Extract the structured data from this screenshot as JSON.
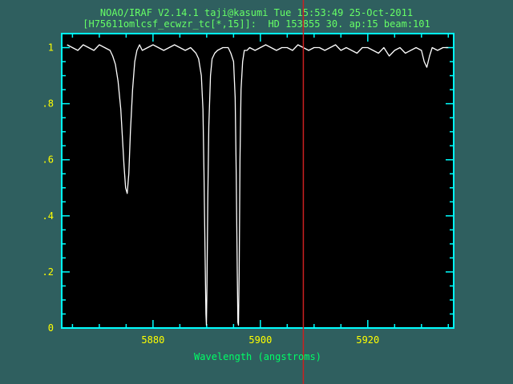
{
  "window": {
    "title_line1": "NOAO/IRAF V2.14.1 taji@kasumi Tue 15:53:49 25-Oct-2011",
    "title_line2": "[H75611omlcsf_ecwzr_tc[*,15]]:  HD 153855 30. ap:15 beam:101"
  },
  "colors": {
    "background": "#2f5f5f",
    "plot_background": "#000000",
    "axes": "#00ffff",
    "tick_labels": "#ffff00",
    "axis_label": "#00ff66",
    "header_text": "#66ff66",
    "spectrum": "#ffffff",
    "cursor": "#cc2020"
  },
  "chart_data": {
    "type": "line",
    "title": "",
    "xlabel": "Wavelength (angstroms)",
    "ylabel": "",
    "xlim": [
      5863,
      5936
    ],
    "ylim": [
      0,
      1.05
    ],
    "xticks": [
      {
        "value": 5880,
        "label": "5880"
      },
      {
        "value": 5900,
        "label": "5900"
      },
      {
        "value": 5920,
        "label": "5920"
      }
    ],
    "yticks": [
      {
        "value": 0,
        "label": "0"
      },
      {
        "value": 0.2,
        "label": ".2"
      },
      {
        "value": 0.4,
        "label": ".4"
      },
      {
        "value": 0.6,
        "label": ".6"
      },
      {
        "value": 0.8,
        "label": ".8"
      },
      {
        "value": 1.0,
        "label": "1"
      }
    ],
    "cursor_x": 5908,
    "series": [
      {
        "x": [
          5864,
          5865,
          5866,
          5867,
          5868,
          5869,
          5870,
          5871,
          5872,
          5872.5,
          5873,
          5873.5,
          5874,
          5874.3,
          5874.6,
          5874.9,
          5875.2,
          5875.5,
          5875.8,
          5876.2,
          5876.6,
          5877,
          5877.5,
          5878,
          5879,
          5880,
          5881,
          5882,
          5883,
          5884,
          5885,
          5886,
          5887,
          5888,
          5888.5,
          5889,
          5889.3,
          5889.5,
          5889.7,
          5889.85,
          5889.95,
          5890.05,
          5890.2,
          5890.4,
          5890.7,
          5891,
          5891.5,
          5892,
          5893,
          5894,
          5894.5,
          5895,
          5895.3,
          5895.5,
          5895.7,
          5895.82,
          5895.92,
          5896.05,
          5896.2,
          5896.4,
          5896.7,
          5897,
          5897.5,
          5898,
          5899,
          5900,
          5901,
          5902,
          5903,
          5904,
          5905,
          5906,
          5907,
          5908,
          5909,
          5910,
          5911,
          5912,
          5913,
          5914,
          5915,
          5916,
          5917,
          5918,
          5919,
          5920,
          5921,
          5922,
          5923,
          5924,
          5925,
          5926,
          5927,
          5928,
          5929,
          5930,
          5930.5,
          5931,
          5931.5,
          5932,
          5933,
          5934,
          5935
        ],
        "y": [
          1.01,
          1.0,
          0.99,
          1.01,
          1.0,
          0.99,
          1.01,
          1.0,
          0.99,
          0.97,
          0.94,
          0.88,
          0.78,
          0.68,
          0.58,
          0.5,
          0.48,
          0.55,
          0.7,
          0.85,
          0.95,
          0.99,
          1.01,
          0.99,
          1.0,
          1.01,
          1.0,
          0.99,
          1.0,
          1.01,
          1.0,
          0.99,
          1.0,
          0.98,
          0.96,
          0.9,
          0.78,
          0.55,
          0.25,
          0.05,
          0.01,
          0.15,
          0.45,
          0.72,
          0.9,
          0.96,
          0.98,
          0.99,
          1.0,
          1.0,
          0.98,
          0.95,
          0.82,
          0.55,
          0.2,
          0.02,
          0.01,
          0.2,
          0.6,
          0.85,
          0.95,
          0.99,
          0.99,
          1.0,
          0.99,
          1.0,
          1.01,
          1.0,
          0.99,
          1.0,
          1.0,
          0.99,
          1.01,
          1.0,
          0.99,
          1.0,
          1.0,
          0.99,
          1.0,
          1.01,
          0.99,
          1.0,
          0.99,
          0.98,
          1.0,
          1.0,
          0.99,
          0.98,
          1.0,
          0.97,
          0.99,
          1.0,
          0.98,
          0.99,
          1.0,
          0.99,
          0.95,
          0.93,
          0.97,
          1.0,
          0.99,
          1.0,
          1.0
        ]
      }
    ]
  }
}
